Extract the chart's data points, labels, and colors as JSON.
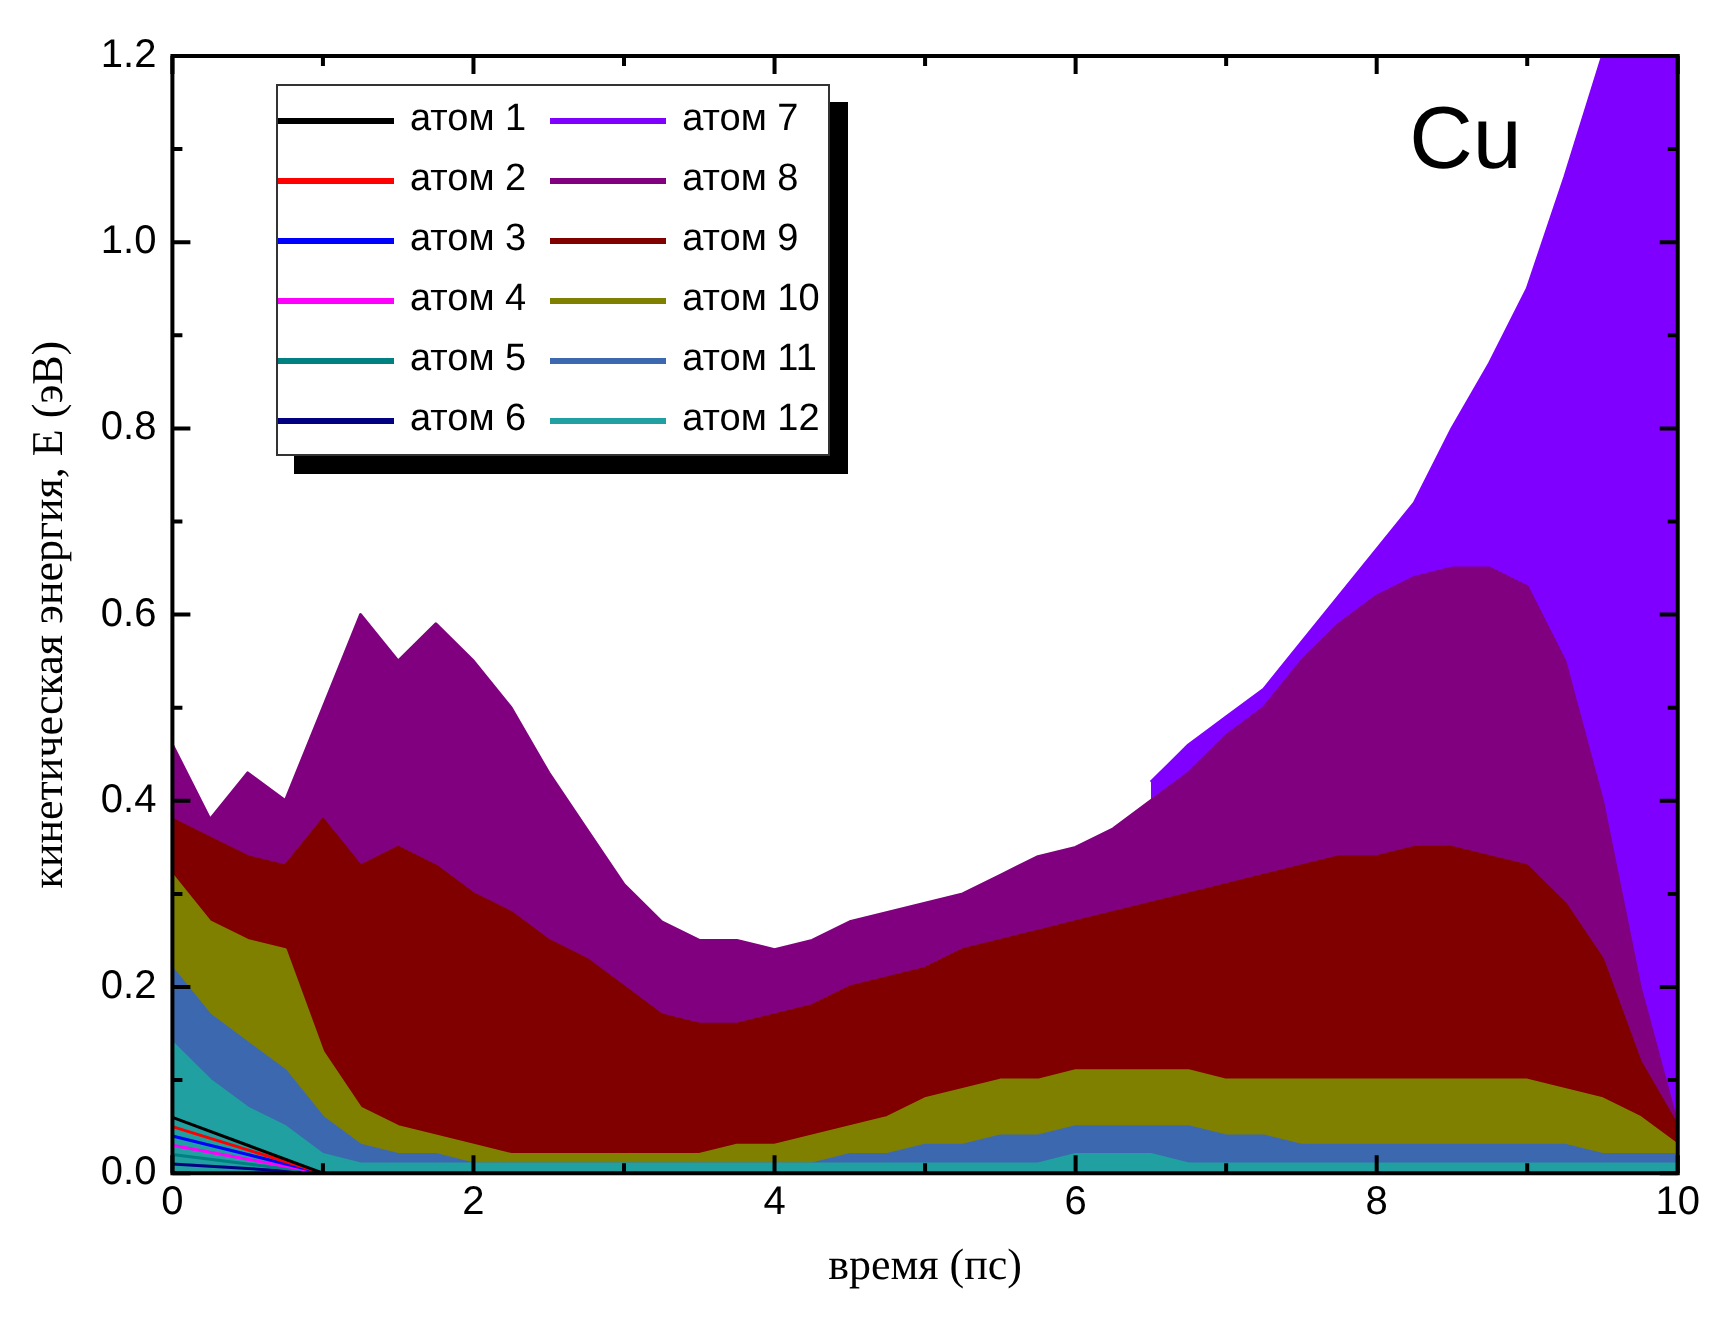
{
  "chart_data": {
    "type": "area",
    "xlabel": "время (пс)",
    "ylabel": "кинетическая энергия, E (эВ)",
    "annotations": [
      "Cu"
    ],
    "x": [
      0,
      0.25,
      0.5,
      0.75,
      1,
      1.25,
      1.5,
      1.75,
      2,
      2.25,
      2.5,
      2.75,
      3,
      3.25,
      3.5,
      3.75,
      4,
      4.25,
      4.5,
      4.75,
      5,
      5.25,
      5.5,
      5.75,
      6,
      6.25,
      6.5,
      6.75,
      7,
      7.25,
      7.5,
      7.75,
      8,
      8.25,
      8.5,
      8.75,
      9,
      9.25,
      9.5,
      9.75,
      10
    ],
    "xlim": [
      0,
      10
    ],
    "xticks": [
      0,
      {
        "value": 1,
        "label": null
      },
      2,
      {
        "value": 3,
        "label": null
      },
      4,
      {
        "value": 5,
        "label": null
      },
      6,
      {
        "value": 7,
        "label": null
      },
      8,
      {
        "value": 9,
        "label": null
      },
      10
    ],
    "ylim": [
      0,
      1.2
    ],
    "yticks": [
      {
        "value": 0,
        "label": "0.0"
      },
      {
        "value": 0.1,
        "label": null
      },
      {
        "value": 0.2,
        "label": "0.2"
      },
      {
        "value": 0.3,
        "label": null
      },
      {
        "value": 0.4,
        "label": "0.4"
      },
      {
        "value": 0.5,
        "label": null
      },
      {
        "value": 0.6,
        "label": "0.6"
      },
      {
        "value": 0.7,
        "label": null
      },
      {
        "value": 0.8,
        "label": "0.8"
      },
      {
        "value": 0.9,
        "label": null
      },
      {
        "value": 1.0,
        "label": "1.0"
      },
      {
        "value": 1.1,
        "label": null
      },
      {
        "value": 1.2,
        "label": "1.2"
      }
    ],
    "grid": false,
    "legend": "top left",
    "series": [
      {
        "name": "атом 1",
        "type": "line",
        "color": "#000000",
        "x": [
          0,
          0.5,
          1
        ],
        "values": [
          0.06,
          0.03,
          0
        ]
      },
      {
        "name": "атом 2",
        "type": "line",
        "color": "#ff0000",
        "x": [
          0,
          0.5,
          1
        ],
        "values": [
          0.05,
          0.025,
          0
        ]
      },
      {
        "name": "атом 3",
        "type": "line",
        "color": "#0000ff",
        "x": [
          0,
          0.5,
          1
        ],
        "values": [
          0.04,
          0.02,
          0
        ]
      },
      {
        "name": "атом 4",
        "type": "line",
        "color": "#ff00ff",
        "x": [
          0,
          0.5,
          1
        ],
        "values": [
          0.03,
          0.015,
          0
        ]
      },
      {
        "name": "атом 5",
        "type": "line",
        "color": "#008080",
        "x": [
          0,
          0.5,
          1
        ],
        "values": [
          0.02,
          0.01,
          0
        ]
      },
      {
        "name": "атом 6",
        "type": "line",
        "color": "#000080",
        "x": [
          0,
          0.5,
          1
        ],
        "values": [
          0.01,
          0.005,
          0
        ]
      },
      {
        "name": "атом 7",
        "color": "#8000ff",
        "x": [
          6.5,
          6.75,
          7,
          7.25,
          7.5,
          7.75,
          8,
          8.25,
          8.5,
          8.75,
          9,
          9.25,
          9.5,
          9.75,
          10
        ],
        "values": [
          0.42,
          0.46,
          0.49,
          0.52,
          0.57,
          0.62,
          0.67,
          0.72,
          0.8,
          0.87,
          0.95,
          1.07,
          1.2,
          1.2,
          1.2
        ]
      },
      {
        "name": "атом 8",
        "color": "#800080",
        "values": [
          0.46,
          0.38,
          0.43,
          0.4,
          0.5,
          0.6,
          0.55,
          0.59,
          0.55,
          0.5,
          0.43,
          0.37,
          0.31,
          0.27,
          0.25,
          0.25,
          0.24,
          0.25,
          0.27,
          0.28,
          0.29,
          0.3,
          0.32,
          0.34,
          0.35,
          0.37,
          0.4,
          0.43,
          0.47,
          0.5,
          0.55,
          0.59,
          0.62,
          0.64,
          0.65,
          0.65,
          0.63,
          0.55,
          0.4,
          0.2,
          0.05
        ]
      },
      {
        "name": "атом 9",
        "color": "#800000",
        "values": [
          0.38,
          0.36,
          0.34,
          0.33,
          0.38,
          0.33,
          0.35,
          0.33,
          0.3,
          0.28,
          0.25,
          0.23,
          0.2,
          0.17,
          0.16,
          0.16,
          0.17,
          0.18,
          0.2,
          0.21,
          0.22,
          0.24,
          0.25,
          0.26,
          0.27,
          0.28,
          0.29,
          0.3,
          0.31,
          0.32,
          0.33,
          0.34,
          0.34,
          0.35,
          0.35,
          0.34,
          0.33,
          0.29,
          0.23,
          0.12,
          0.05
        ]
      },
      {
        "name": "атом 10",
        "color": "#808000",
        "values": [
          0.32,
          0.27,
          0.25,
          0.24,
          0.13,
          0.07,
          0.05,
          0.04,
          0.03,
          0.02,
          0.02,
          0.02,
          0.02,
          0.02,
          0.02,
          0.03,
          0.03,
          0.04,
          0.05,
          0.06,
          0.08,
          0.09,
          0.1,
          0.1,
          0.11,
          0.11,
          0.11,
          0.11,
          0.1,
          0.1,
          0.1,
          0.1,
          0.1,
          0.1,
          0.1,
          0.1,
          0.1,
          0.09,
          0.08,
          0.06,
          0.03
        ]
      },
      {
        "name": "атом 11",
        "color": "#3c68b0",
        "values": [
          0.22,
          0.17,
          0.14,
          0.11,
          0.06,
          0.03,
          0.02,
          0.02,
          0.01,
          0.01,
          0.01,
          0.01,
          0.01,
          0.01,
          0.01,
          0.01,
          0.01,
          0.01,
          0.02,
          0.02,
          0.03,
          0.03,
          0.04,
          0.04,
          0.05,
          0.05,
          0.05,
          0.05,
          0.04,
          0.04,
          0.03,
          0.03,
          0.03,
          0.03,
          0.03,
          0.03,
          0.03,
          0.03,
          0.02,
          0.02,
          0.02
        ]
      },
      {
        "name": "атом 12",
        "color": "#20a0a0",
        "values": [
          0.14,
          0.1,
          0.07,
          0.05,
          0.02,
          0.01,
          0.01,
          0.01,
          0.01,
          0.01,
          0.01,
          0.01,
          0.01,
          0.01,
          0.01,
          0.01,
          0.01,
          0.01,
          0.01,
          0.01,
          0.01,
          0.01,
          0.01,
          0.01,
          0.02,
          0.02,
          0.02,
          0.01,
          0.01,
          0.01,
          0.01,
          0.01,
          0.01,
          0.01,
          0.01,
          0.01,
          0.01,
          0.01,
          0.01,
          0.01,
          0.01
        ]
      }
    ]
  }
}
